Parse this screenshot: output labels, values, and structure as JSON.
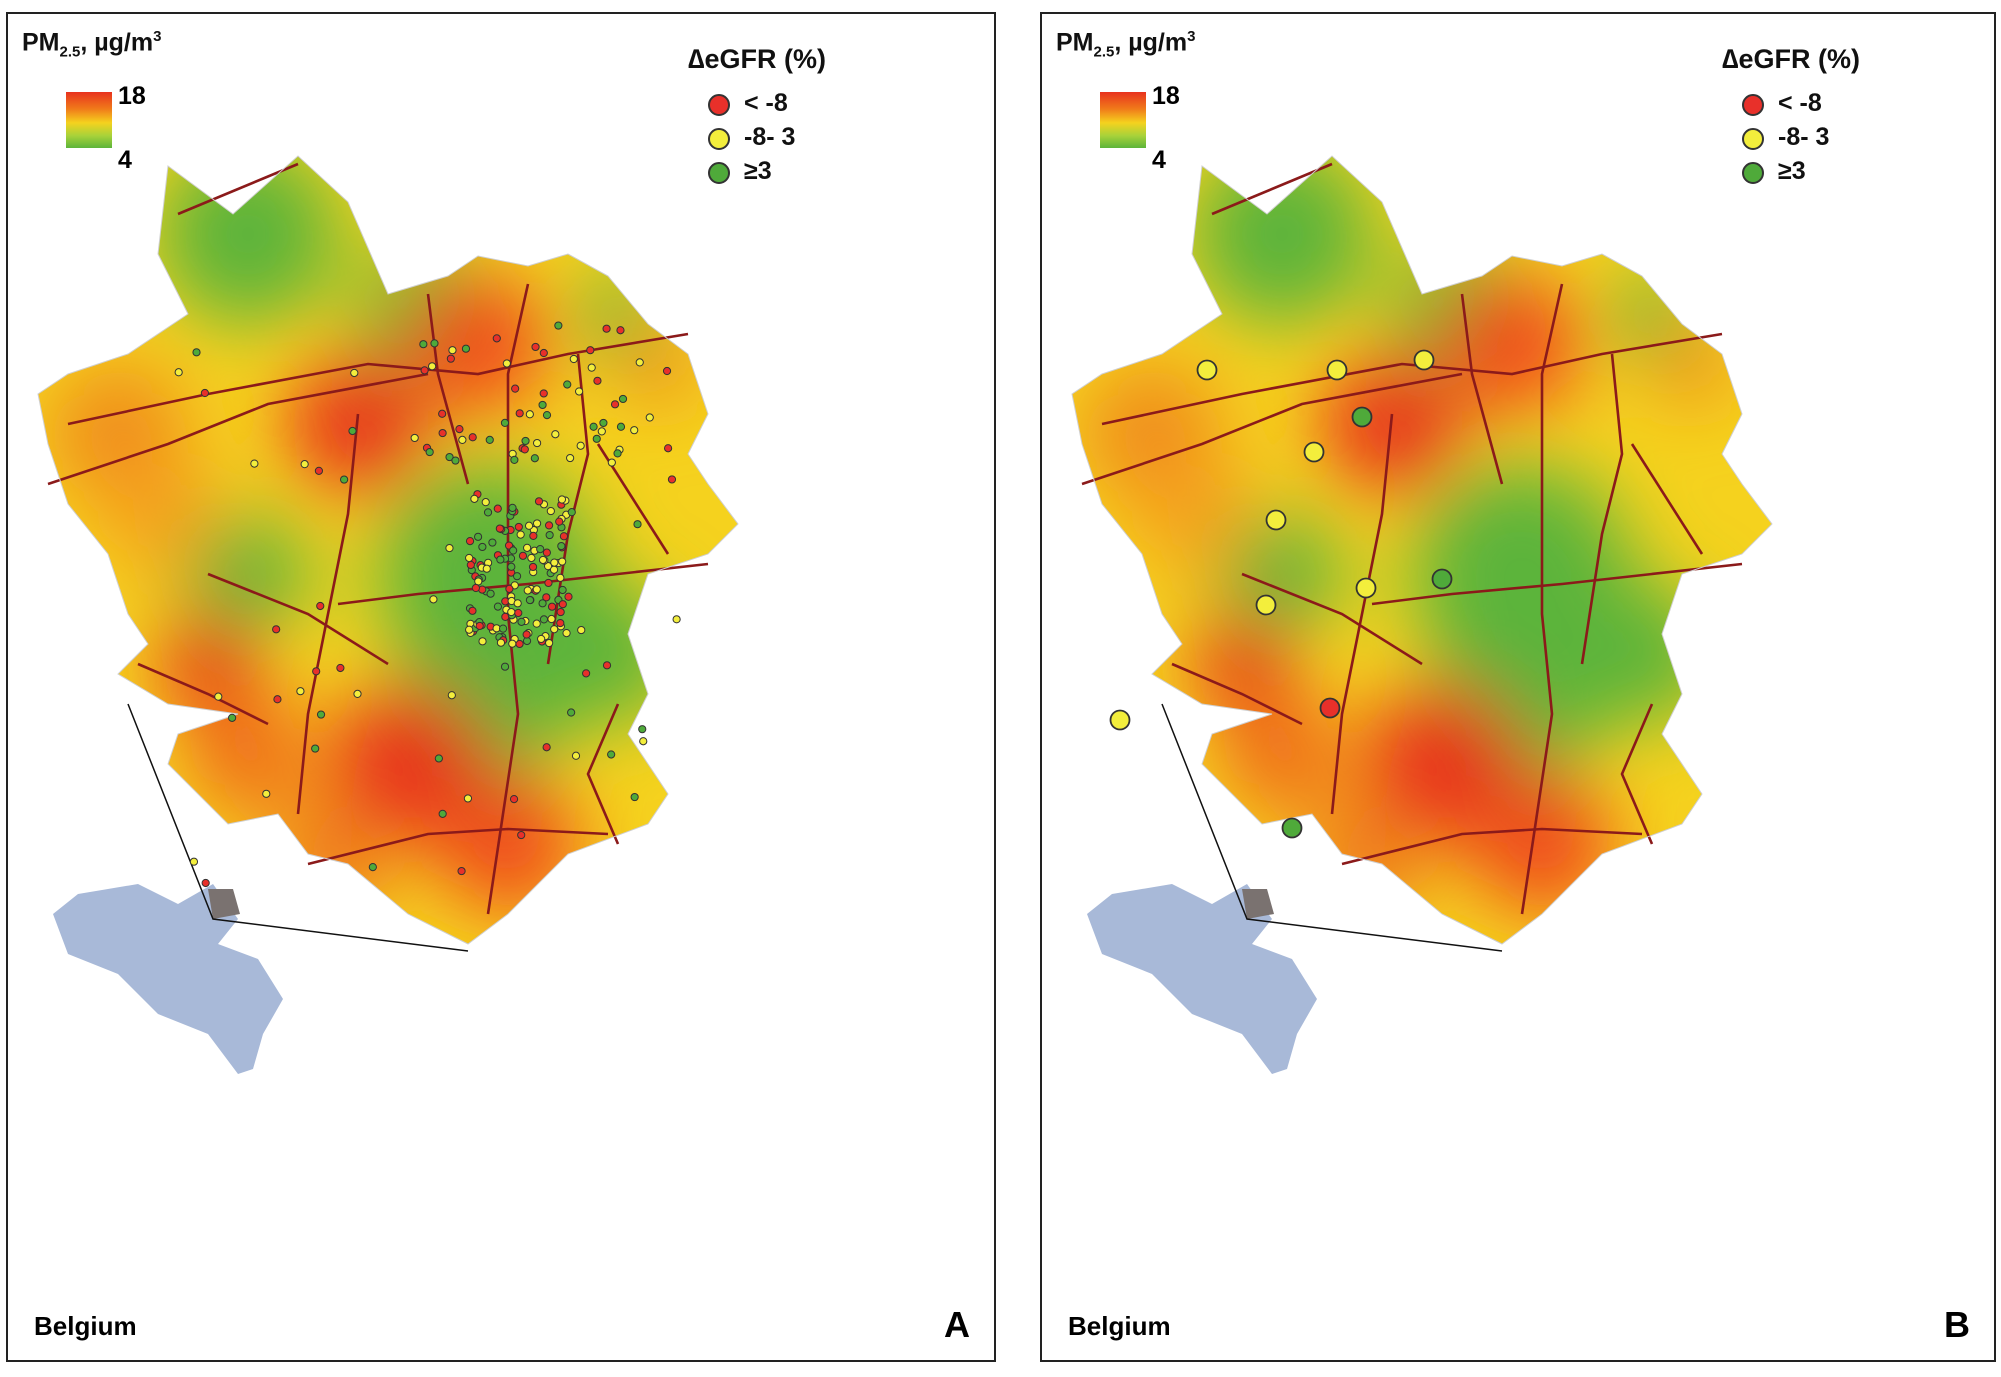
{
  "legend": {
    "pm_title": "PM",
    "pm_sub": "2.5",
    "pm_unit": ", µg/m",
    "pm_unit_sup": "3",
    "scale_max": "18",
    "scale_min": "4",
    "egfr_title": "∆eGFR  (%)",
    "categories": [
      {
        "label": "< -8",
        "color": "#e8302a"
      },
      {
        "label": "-8- 3",
        "color": "#f3ee3c"
      },
      {
        "label": "≥3",
        "color": "#4faa3a"
      }
    ]
  },
  "panels": [
    {
      "id": "A",
      "letter": "A",
      "country": "Belgium",
      "dot_count": "many"
    },
    {
      "id": "B",
      "letter": "B",
      "country": "Belgium",
      "dot_count": "few"
    }
  ],
  "colors": {
    "pollution_high": "#e8321e",
    "pollution_mid": "#f5d21e",
    "pollution_low": "#5cb43a",
    "roads": "#8b1a1a",
    "belgium": "#a8b9d8",
    "region_inset": "#7a7270"
  }
}
